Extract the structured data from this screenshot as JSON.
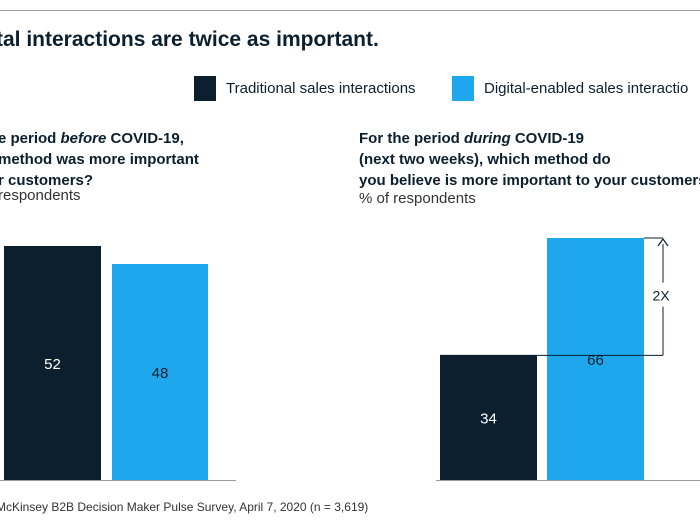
{
  "headline": "tal interactions are twice as important.",
  "legend": {
    "items": [
      {
        "label": "Traditional sales interactions",
        "color": "#0b1f2e"
      },
      {
        "label": "Digital-enabled sales interactio",
        "color": "#1ea7ec"
      }
    ]
  },
  "left_panel": {
    "title_line1_pre": "e period ",
    "title_line1_em": "before",
    "title_line1_post": " COVID-19,",
    "title_line2": " method was more important",
    "title_line3": "r customers?",
    "subtitle": "respondents"
  },
  "right_panel": {
    "title_line1_pre": "For the period ",
    "title_line1_em": "during",
    "title_line1_post": " COVID-19",
    "title_line2": "(next two weeks), which method do",
    "title_line3": "you believe is more important to your customers",
    "subtitle": "% of respondents"
  },
  "chart_data": [
    {
      "type": "bar",
      "categories": [
        "Traditional sales interactions",
        "Digital-enabled sales interactio"
      ],
      "values": [
        52,
        48
      ],
      "colors": [
        "#0b1f2e",
        "#1ea7ec"
      ],
      "ylim": [
        0,
        52
      ],
      "grid": false
    },
    {
      "type": "bar",
      "categories": [
        "Traditional sales interactions",
        "Digital-enabled sales interactio"
      ],
      "values": [
        34,
        66
      ],
      "colors": [
        "#0b1f2e",
        "#1ea7ec"
      ],
      "ylim": [
        0,
        66
      ],
      "grid": false,
      "annotation": "2X"
    }
  ],
  "footer": "McKinsey B2B Decision Maker Pulse Survey, April 7, 2020 (n = 3,619)"
}
